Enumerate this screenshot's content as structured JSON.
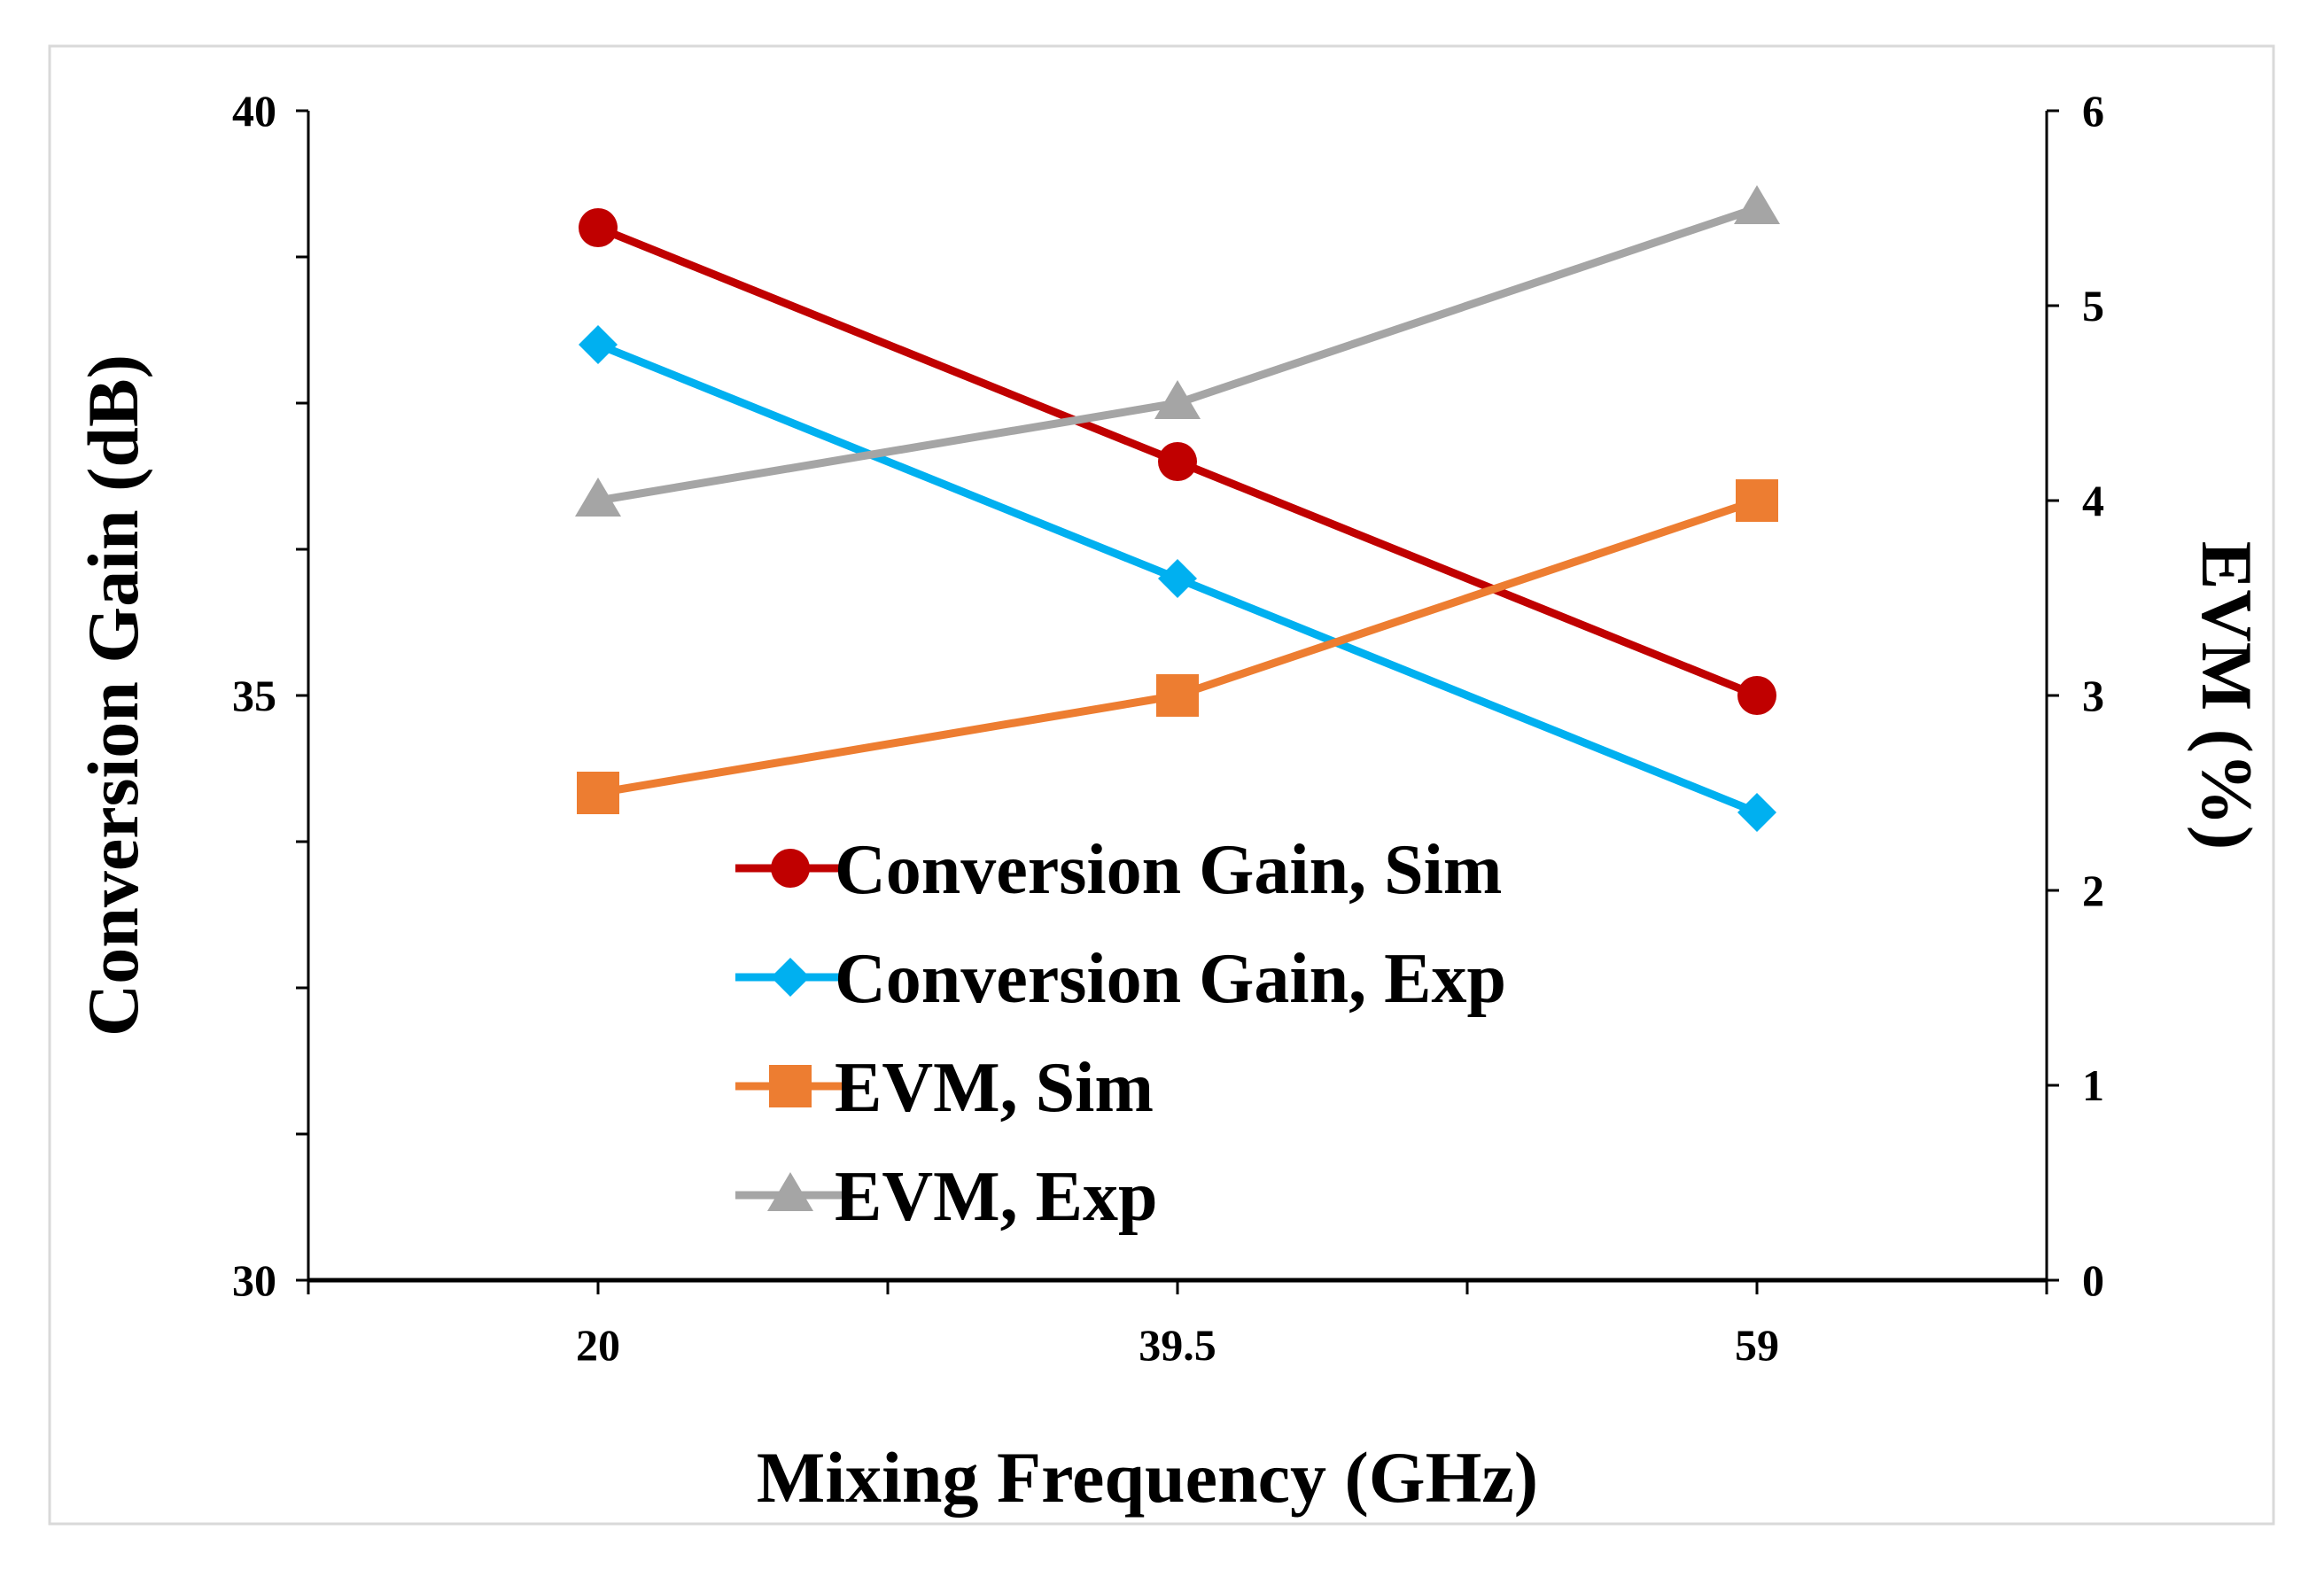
{
  "chart_data": {
    "type": "line",
    "title": "",
    "xlabel": "Mixing Frequency (GHz)",
    "ylabel": "Conversion Gain (dB)",
    "y2label": "EVM (%)",
    "categories": [
      "20",
      "39.5",
      "59"
    ],
    "ylim": [
      30,
      40
    ],
    "y_ticks": [
      "30",
      "35",
      "40"
    ],
    "y2lim": [
      0,
      6
    ],
    "y2_ticks": [
      "0",
      "1",
      "2",
      "3",
      "4",
      "5",
      "6"
    ],
    "grid": false,
    "legend_position": "center-bottom",
    "series": [
      {
        "name": "Conversion Gain, Sim",
        "axis": "left",
        "values": [
          39,
          37,
          35
        ],
        "color": "#C00000",
        "marker": "circle"
      },
      {
        "name": "Conversion Gain, Exp",
        "axis": "left",
        "values": [
          38,
          36,
          34
        ],
        "color": "#00B0F0",
        "marker": "diamond"
      },
      {
        "name": "EVM, Sim",
        "axis": "right",
        "values": [
          2.5,
          3,
          4
        ],
        "color": "#ED7D31",
        "marker": "square"
      },
      {
        "name": "EVM, Exp",
        "axis": "right",
        "values": [
          4,
          4.5,
          5.5
        ],
        "color": "#A5A5A5",
        "marker": "triangle"
      }
    ]
  }
}
